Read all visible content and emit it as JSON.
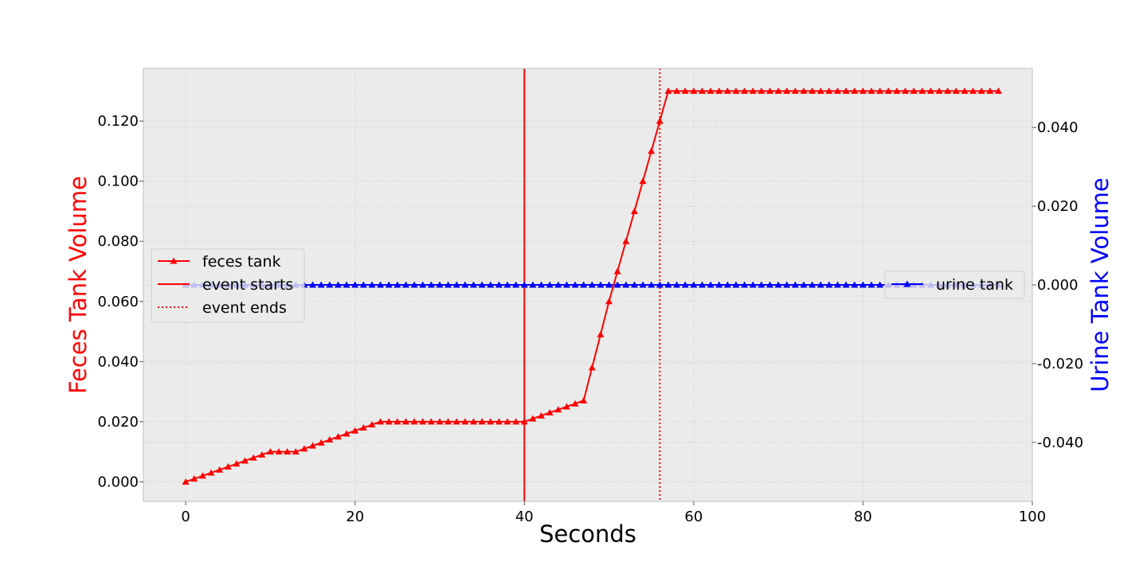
{
  "colors": {
    "feces": "#ff0000",
    "urine": "#0000ff",
    "event": "#ff0000",
    "plot_bg": "#ebebeb",
    "grid": "#cfcfcf"
  },
  "chart_data": {
    "type": "line",
    "xlabel": "Seconds",
    "ylabel_left": "Feces Tank Volume",
    "ylabel_right": "Urine Tank Volume",
    "xlim": [
      -5,
      100
    ],
    "ylim_left": [
      -0.0065,
      0.1375
    ],
    "ylim_right": [
      -0.055,
      0.055
    ],
    "x_ticks": [
      0,
      20,
      40,
      60,
      80,
      100
    ],
    "y_left_ticks": [
      "0.000",
      "0.020",
      "0.040",
      "0.060",
      "0.080",
      "0.100",
      "0.120"
    ],
    "y_left_tick_values": [
      0,
      0.02,
      0.04,
      0.06,
      0.08,
      0.1,
      0.12
    ],
    "y_right_ticks": [
      "-0.040",
      "-0.020",
      "0.000",
      "0.020",
      "0.040"
    ],
    "y_right_tick_values": [
      -0.04,
      -0.02,
      0,
      0.02,
      0.04
    ],
    "grid": true,
    "legend_left_placement": "center-left",
    "legend_right_placement": "center-right",
    "legend_left": [
      {
        "label": "feces tank",
        "style": "line-triangle"
      },
      {
        "label": "event starts",
        "style": "solid"
      },
      {
        "label": "event ends",
        "style": "dotted"
      }
    ],
    "legend_right": [
      {
        "label": "urine tank",
        "style": "line-triangle"
      }
    ],
    "event_start": 40,
    "event_end": 56,
    "series": [
      {
        "name": "feces tank",
        "axis": "left",
        "x": [
          0,
          1,
          2,
          3,
          4,
          5,
          6,
          7,
          8,
          9,
          10,
          11,
          12,
          13,
          14,
          15,
          16,
          17,
          18,
          19,
          20,
          21,
          22,
          23,
          24,
          25,
          26,
          27,
          28,
          29,
          30,
          31,
          32,
          33,
          34,
          35,
          36,
          37,
          38,
          39,
          40,
          41,
          42,
          43,
          44,
          45,
          46,
          47,
          48,
          49,
          50,
          51,
          52,
          53,
          54,
          55,
          56,
          57,
          58,
          59,
          60,
          61,
          62,
          63,
          64,
          65,
          66,
          67,
          68,
          69,
          70,
          71,
          72,
          73,
          74,
          75,
          76,
          77,
          78,
          79,
          80,
          81,
          82,
          83,
          84,
          85,
          86,
          87,
          88,
          89,
          90,
          91,
          92,
          93,
          94,
          95,
          96
        ],
        "values": [
          0,
          0.001,
          0.002,
          0.003,
          0.004,
          0.005,
          0.006,
          0.007,
          0.008,
          0.009,
          0.01,
          0.01,
          0.01,
          0.01,
          0.011,
          0.012,
          0.013,
          0.014,
          0.015,
          0.016,
          0.017,
          0.018,
          0.019,
          0.02,
          0.02,
          0.02,
          0.02,
          0.02,
          0.02,
          0.02,
          0.02,
          0.02,
          0.02,
          0.02,
          0.02,
          0.02,
          0.02,
          0.02,
          0.02,
          0.02,
          0.02,
          0.021,
          0.022,
          0.023,
          0.024,
          0.025,
          0.026,
          0.027,
          0.038,
          0.049,
          0.06,
          0.07,
          0.08,
          0.09,
          0.1,
          0.11,
          0.12,
          0.13,
          0.13,
          0.13,
          0.13,
          0.13,
          0.13,
          0.13,
          0.13,
          0.13,
          0.13,
          0.13,
          0.13,
          0.13,
          0.13,
          0.13,
          0.13,
          0.13,
          0.13,
          0.13,
          0.13,
          0.13,
          0.13,
          0.13,
          0.13,
          0.13,
          0.13,
          0.13,
          0.13,
          0.13,
          0.13,
          0.13,
          0.13,
          0.13,
          0.13,
          0.13,
          0.13,
          0.13,
          0.13,
          0.13,
          0.13
        ]
      },
      {
        "name": "urine tank",
        "axis": "right",
        "x": [
          0,
          1,
          2,
          3,
          4,
          5,
          6,
          7,
          8,
          9,
          10,
          11,
          12,
          13,
          14,
          15,
          16,
          17,
          18,
          19,
          20,
          21,
          22,
          23,
          24,
          25,
          26,
          27,
          28,
          29,
          30,
          31,
          32,
          33,
          34,
          35,
          36,
          37,
          38,
          39,
          40,
          41,
          42,
          43,
          44,
          45,
          46,
          47,
          48,
          49,
          50,
          51,
          52,
          53,
          54,
          55,
          56,
          57,
          58,
          59,
          60,
          61,
          62,
          63,
          64,
          65,
          66,
          67,
          68,
          69,
          70,
          71,
          72,
          73,
          74,
          75,
          76,
          77,
          78,
          79,
          80,
          81,
          82,
          83,
          84,
          85,
          86,
          87,
          88,
          89,
          90,
          91,
          92,
          93,
          94,
          95,
          96
        ],
        "values": [
          0,
          0,
          0,
          0,
          0,
          0,
          0,
          0,
          0,
          0,
          0,
          0,
          0,
          0,
          0,
          0,
          0,
          0,
          0,
          0,
          0,
          0,
          0,
          0,
          0,
          0,
          0,
          0,
          0,
          0,
          0,
          0,
          0,
          0,
          0,
          0,
          0,
          0,
          0,
          0,
          0,
          0,
          0,
          0,
          0,
          0,
          0,
          0,
          0,
          0,
          0,
          0,
          0,
          0,
          0,
          0,
          0,
          0,
          0,
          0,
          0,
          0,
          0,
          0,
          0,
          0,
          0,
          0,
          0,
          0,
          0,
          0,
          0,
          0,
          0,
          0,
          0,
          0,
          0,
          0,
          0,
          0,
          0,
          0,
          0,
          0,
          0,
          0,
          0,
          0,
          0,
          0,
          0,
          0,
          0,
          0,
          0
        ]
      }
    ]
  }
}
